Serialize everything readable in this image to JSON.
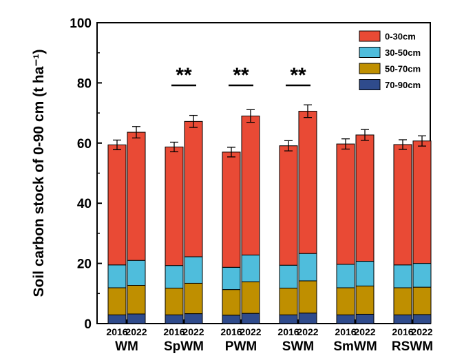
{
  "chart_data": {
    "type": "bar",
    "stacked": true,
    "ylabel": "Soil carbon stock of 0-90 cm (t ha⁻¹)",
    "ylim": [
      0,
      100
    ],
    "yticks": [
      "0",
      "20",
      "40",
      "60",
      "80",
      "100"
    ],
    "groups": [
      "WM",
      "SpWM",
      "PWM",
      "SWM",
      "SmWM",
      "RSWM"
    ],
    "years": [
      "2016",
      "2022"
    ],
    "series": [
      {
        "name": "70-90cm",
        "color": "#2f4b8c",
        "values": [
          [
            2.9,
            3.2
          ],
          [
            2.9,
            3.3
          ],
          [
            2.8,
            3.4
          ],
          [
            2.9,
            3.5
          ],
          [
            2.9,
            3.1
          ],
          [
            2.9,
            3.0
          ]
        ]
      },
      {
        "name": "50-70cm",
        "color": "#bf8f00",
        "values": [
          [
            9.0,
            9.5
          ],
          [
            8.9,
            10.1
          ],
          [
            8.5,
            10.5
          ],
          [
            8.9,
            10.7
          ],
          [
            9.0,
            9.4
          ],
          [
            9.0,
            9.1
          ]
        ]
      },
      {
        "name": "30-50cm",
        "color": "#4fbddc",
        "values": [
          [
            7.6,
            8.3
          ],
          [
            7.5,
            8.8
          ],
          [
            7.4,
            8.9
          ],
          [
            7.6,
            9.1
          ],
          [
            7.8,
            8.2
          ],
          [
            7.6,
            7.9
          ]
        ]
      },
      {
        "name": "0-30cm",
        "color": "#e94a35",
        "values": [
          [
            39.9,
            42.6
          ],
          [
            39.4,
            45.0
          ],
          [
            38.3,
            46.2
          ],
          [
            39.7,
            47.3
          ],
          [
            40.0,
            42.0
          ],
          [
            40.0,
            40.7
          ]
        ]
      }
    ],
    "errors": [
      [
        1.6,
        1.9
      ],
      [
        1.6,
        2.0
      ],
      [
        1.6,
        2.1
      ],
      [
        1.7,
        2.1
      ],
      [
        1.7,
        1.8
      ],
      [
        1.6,
        1.7
      ]
    ],
    "significance": [
      "",
      "**",
      "**",
      "**",
      "",
      ""
    ],
    "legend": {
      "placement": "top-right",
      "order": [
        "0-30cm",
        "30-50cm",
        "50-70cm",
        "70-90cm"
      ]
    },
    "grid": false
  }
}
